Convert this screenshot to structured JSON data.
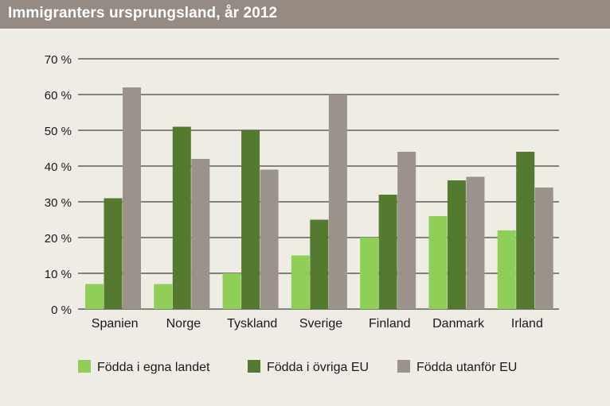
{
  "colors": {
    "header_bg": "#958b83",
    "page_bg": "#efebe5",
    "grid": "#1a1a1a",
    "text": "#1a1a1a"
  },
  "chart_data": {
    "type": "bar",
    "title": "Immigranters ursprungsland, år 2012",
    "categories": [
      "Spanien",
      "Norge",
      "Tyskland",
      "Sverige",
      "Finland",
      "Danmark",
      "Irland"
    ],
    "series": [
      {
        "name": "Födda i egna landet",
        "color": "#8fce57",
        "values": [
          7,
          7,
          10,
          15,
          20,
          26,
          22
        ]
      },
      {
        "name": "Födda i övriga EU",
        "color": "#547a2f",
        "values": [
          31,
          51,
          50,
          25,
          32,
          36,
          44
        ]
      },
      {
        "name": "Födda utanför EU",
        "color": "#9b928b",
        "values": [
          62,
          42,
          39,
          60,
          44,
          37,
          34
        ]
      }
    ],
    "ylim": [
      0,
      70
    ],
    "yticks": [
      0,
      10,
      20,
      30,
      40,
      50,
      60,
      70
    ],
    "ytick_labels": [
      "0 %",
      "10 %",
      "20 %",
      "30 %",
      "40 %",
      "50 %",
      "60 %",
      "70 %"
    ],
    "xlabel": "",
    "ylabel": "",
    "grid": true,
    "legend_position": "bottom"
  }
}
